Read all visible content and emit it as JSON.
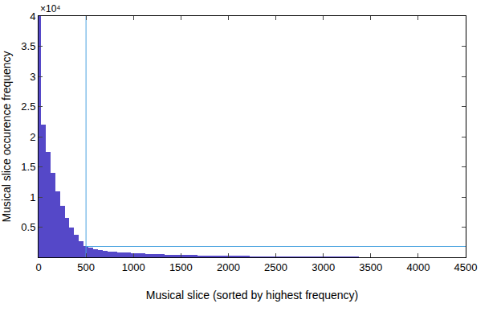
{
  "chart_data": {
    "type": "bar",
    "x_label": "Musical slice (sorted by highest frequency)",
    "y_label": "Musical slice occurence frequency",
    "annotations": [
      "×10⁴"
    ],
    "xlim": [
      0,
      4500
    ],
    "xticks": [
      0,
      500,
      1000,
      1500,
      2000,
      2500,
      3000,
      3500,
      4000,
      4500
    ],
    "ylim": [
      0,
      4
    ],
    "yticks": [
      0.5,
      1,
      1.5,
      2,
      2.5,
      3,
      3.5,
      4
    ],
    "grid": false,
    "series": [
      {
        "type": "bar",
        "color": "#5548c8",
        "x": [
          0,
          50,
          100,
          150,
          200,
          250,
          300,
          350,
          400,
          450,
          500,
          550,
          600,
          650,
          700,
          750,
          800,
          850,
          900,
          950,
          1000,
          1050,
          1100,
          1150,
          1200,
          1250,
          1300,
          1350,
          1400,
          1450,
          1500,
          1550,
          1600,
          1650,
          1700,
          1750,
          1800,
          1850,
          1900,
          1950,
          2000,
          2050,
          2100,
          2150,
          2200,
          2250,
          2300,
          2350,
          2400,
          2450,
          2500,
          2550,
          2600,
          2650,
          2700,
          2750,
          2800,
          2850,
          2900,
          2950,
          3000,
          3050,
          3100,
          3150,
          3200,
          3250,
          3300,
          3350,
          3400,
          3450,
          3500,
          3550,
          3600,
          3650,
          3700,
          3750,
          3800,
          3850,
          3900,
          3950,
          4000,
          4050
        ],
        "values": [
          4.0,
          2.2,
          1.75,
          1.4,
          1.1,
          0.85,
          0.65,
          0.5,
          0.38,
          0.27,
          0.19,
          0.16,
          0.14,
          0.125,
          0.11,
          0.1,
          0.09,
          0.085,
          0.08,
          0.075,
          0.07,
          0.066,
          0.062,
          0.058,
          0.055,
          0.052,
          0.049,
          0.046,
          0.044,
          0.042,
          0.04,
          0.038,
          0.036,
          0.034,
          0.033,
          0.031,
          0.03,
          0.028,
          0.027,
          0.026,
          0.025,
          0.024,
          0.023,
          0.022,
          0.021,
          0.02,
          0.019,
          0.018,
          0.017,
          0.016,
          0.016,
          0.015,
          0.014,
          0.014,
          0.013,
          0.012,
          0.012,
          0.011,
          0.011,
          0.01,
          0.01,
          0.009,
          0.009,
          0.008,
          0.008,
          0.007,
          0.007,
          0.007,
          0.006,
          0.006,
          0.005,
          0.005,
          0.005,
          0.004,
          0.004,
          0.004,
          0.003,
          0.003,
          0.003,
          0.002,
          0.002,
          0.001
        ]
      },
      {
        "type": "line",
        "color": "#4aa3df",
        "x": [
          500,
          500
        ],
        "values": [
          0,
          4
        ]
      },
      {
        "type": "line",
        "color": "#4aa3df",
        "x": [
          500,
          4500
        ],
        "values": [
          0.18,
          0.18
        ]
      }
    ]
  }
}
